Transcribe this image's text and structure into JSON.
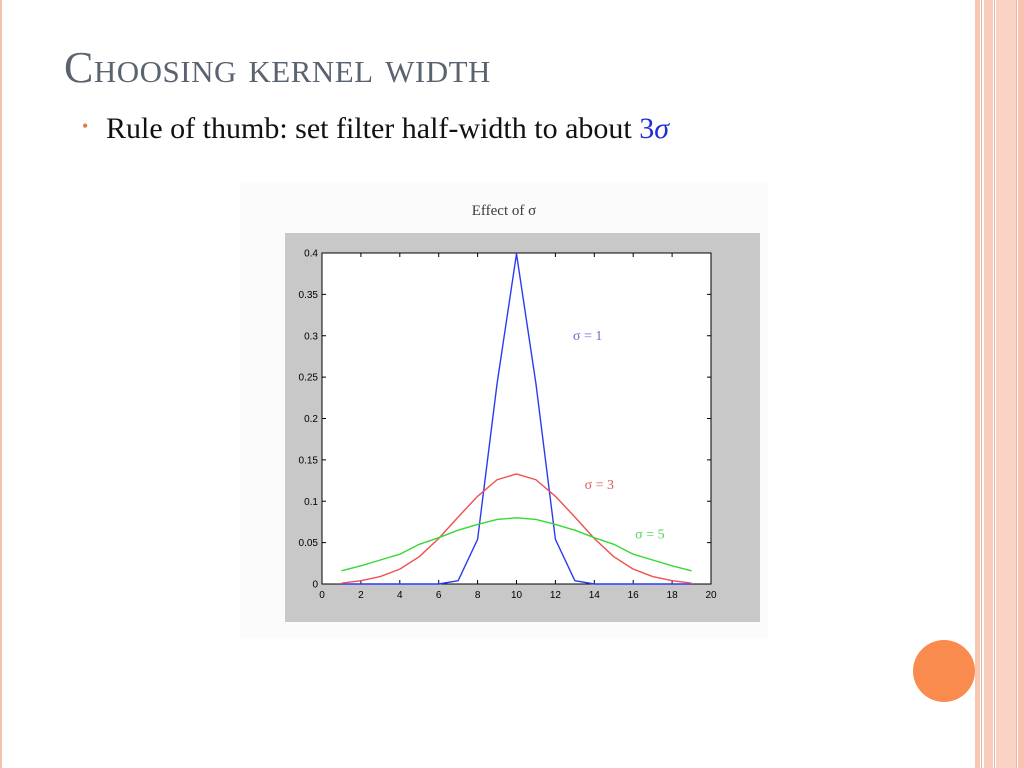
{
  "slide": {
    "title": "Choosing kernel width",
    "bullet": {
      "text": "Rule of thumb: set filter half-width to about ",
      "highlight_number": "3",
      "highlight_symbol": "σ",
      "highlight_color": "#1f2fd8"
    }
  },
  "colors": {
    "accent_dot": "#f98b4e",
    "stripes": "#fbd3c4"
  },
  "chart_data": {
    "type": "line",
    "title": "Effect of σ",
    "xlabel": "",
    "ylabel": "",
    "xlim": [
      0,
      20
    ],
    "ylim": [
      0,
      0.4
    ],
    "xticks": [
      0,
      2,
      4,
      6,
      8,
      10,
      12,
      14,
      16,
      18,
      20
    ],
    "xtick_labels": [
      "0",
      "2",
      "4",
      "6",
      "8",
      "10",
      "12",
      "14",
      "16",
      "18",
      "20"
    ],
    "yticks": [
      0,
      0.05,
      0.1,
      0.15,
      0.2,
      0.25,
      0.3,
      0.35,
      0.4
    ],
    "ytick_labels": [
      "0",
      "0.05",
      "0.1",
      "0.15",
      "0.2",
      "0.25",
      "0.3",
      "0.35",
      "0.4"
    ],
    "grid": false,
    "x": [
      1,
      2,
      3,
      4,
      5,
      6,
      7,
      8,
      9,
      10,
      11,
      12,
      13,
      14,
      15,
      16,
      17,
      18,
      19
    ],
    "series": [
      {
        "name": "σ = 1",
        "color": "#2b3cf0",
        "values": [
          0.0,
          0.0,
          0.0,
          0.0,
          0.0,
          0.0,
          0.004,
          0.054,
          0.242,
          0.399,
          0.242,
          0.054,
          0.004,
          0.0,
          0.0,
          0.0,
          0.0,
          0.0,
          0.0
        ]
      },
      {
        "name": "σ = 3",
        "color": "#f05050",
        "values": [
          0.001,
          0.004,
          0.009,
          0.018,
          0.033,
          0.055,
          0.081,
          0.106,
          0.126,
          0.133,
          0.126,
          0.106,
          0.081,
          0.055,
          0.033,
          0.018,
          0.009,
          0.004,
          0.001
        ]
      },
      {
        "name": "σ = 5",
        "color": "#36d836",
        "values": [
          0.016,
          0.022,
          0.029,
          0.036,
          0.048,
          0.056,
          0.065,
          0.072,
          0.078,
          0.08,
          0.078,
          0.072,
          0.065,
          0.056,
          0.048,
          0.036,
          0.029,
          0.022,
          0.016
        ]
      }
    ],
    "annotations": [
      {
        "text": "σ = 1",
        "color": "#6a6ad0",
        "at_x": 12.9,
        "at_y": 0.295
      },
      {
        "text": "σ = 3",
        "color": "#e25858",
        "at_x": 13.5,
        "at_y": 0.115
      },
      {
        "text": "σ = 5",
        "color": "#58d058",
        "at_x": 16.1,
        "at_y": 0.055
      }
    ]
  }
}
